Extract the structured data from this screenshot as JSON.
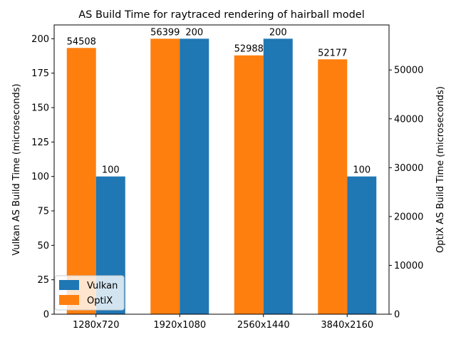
{
  "chart_data": {
    "type": "bar",
    "title": "AS Build Time for raytraced rendering of hairball model",
    "categories": [
      "1280x720",
      "1920x1080",
      "2560x1440",
      "3840x2160"
    ],
    "xlabel": "",
    "ylabel_left": "Vulkan AS Build Time (microseconds)",
    "ylabel_right": "OptiX AS Build Time (microseconds)",
    "ylim_left": [
      0,
      210
    ],
    "ylim_right": [
      0,
      59219
    ],
    "yticks_left": [
      0,
      25,
      50,
      75,
      100,
      125,
      150,
      175,
      200
    ],
    "yticks_right": [
      0,
      10000,
      20000,
      30000,
      40000,
      50000
    ],
    "series": [
      {
        "name": "OptiX",
        "axis": "right",
        "color": "#ff7f0e",
        "values": [
          54508,
          56399,
          52988,
          52177
        ]
      },
      {
        "name": "Vulkan",
        "axis": "left",
        "color": "#1f77b4",
        "values": [
          100,
          200,
          200,
          100
        ]
      }
    ],
    "legend": {
      "position": "lower-left",
      "entries": [
        {
          "name": "Vulkan",
          "color": "#1f77b4"
        },
        {
          "name": "OptiX",
          "color": "#ff7f0e"
        }
      ]
    },
    "grid": false
  }
}
